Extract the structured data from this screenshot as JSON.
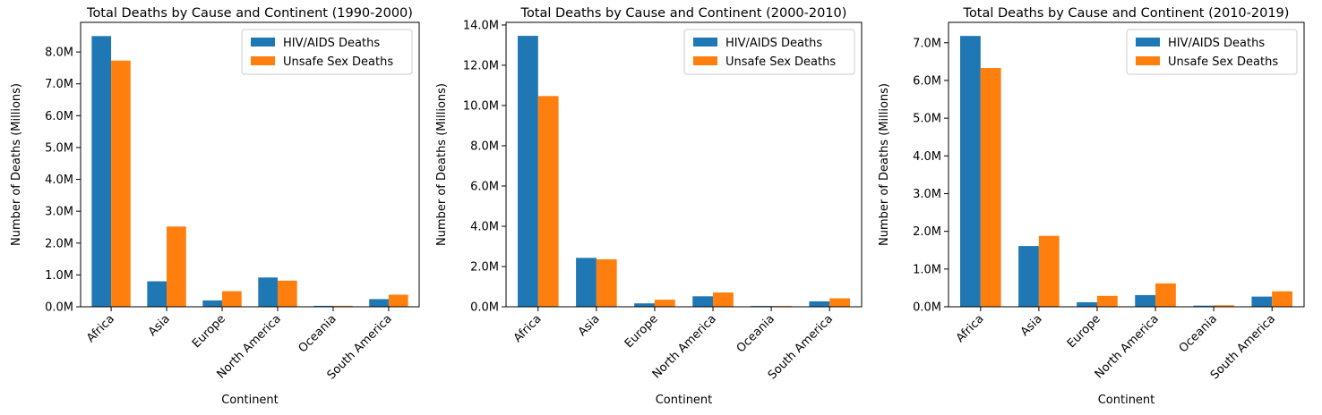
{
  "chart_data": [
    {
      "type": "bar",
      "title": "Total Deaths by Cause and Continent (1990-2000)",
      "xlabel": "Continent",
      "ylabel": "Number of Deaths (Millions)",
      "categories": [
        "Africa",
        "Asia",
        "Europe",
        "North America",
        "Oceania",
        "South America"
      ],
      "series": [
        {
          "name": "HIV/AIDS Deaths",
          "color": "#1f77b4",
          "values": [
            8.5,
            0.8,
            0.2,
            0.92,
            0.03,
            0.24
          ]
        },
        {
          "name": "Unsafe Sex Deaths",
          "color": "#ff7f0e",
          "values": [
            7.73,
            2.52,
            0.49,
            0.82,
            0.03,
            0.38
          ]
        }
      ],
      "yticks": [
        0,
        1,
        2,
        3,
        4,
        5,
        6,
        7,
        8
      ],
      "ytick_labels": [
        "0.0M",
        "1.0M",
        "2.0M",
        "3.0M",
        "4.0M",
        "5.0M",
        "6.0M",
        "7.0M",
        "8.0M"
      ],
      "ylim": [
        0,
        8.93
      ],
      "legend": "top-right",
      "grid": false
    },
    {
      "type": "bar",
      "title": "Total Deaths by Cause and Continent (2000-2010)",
      "xlabel": "Continent",
      "ylabel": "Number of Deaths (Millions)",
      "categories": [
        "Africa",
        "Asia",
        "Europe",
        "North America",
        "Oceania",
        "South America"
      ],
      "series": [
        {
          "name": "HIV/AIDS Deaths",
          "color": "#1f77b4",
          "values": [
            13.46,
            2.43,
            0.17,
            0.52,
            0.04,
            0.27
          ]
        },
        {
          "name": "Unsafe Sex Deaths",
          "color": "#ff7f0e",
          "values": [
            10.47,
            2.36,
            0.35,
            0.71,
            0.04,
            0.42
          ]
        }
      ],
      "yticks": [
        0,
        2,
        4,
        6,
        8,
        10,
        12,
        14
      ],
      "ytick_labels": [
        "0.0M",
        "2.0M",
        "4.0M",
        "6.0M",
        "8.0M",
        "10.0M",
        "12.0M",
        "14.0M"
      ],
      "ylim": [
        0,
        14.13
      ],
      "legend": "top-right",
      "grid": false
    },
    {
      "type": "bar",
      "title": "Total Deaths by Cause and Continent (2010-2019)",
      "xlabel": "Continent",
      "ylabel": "Number of Deaths (Millions)",
      "categories": [
        "Africa",
        "Asia",
        "Europe",
        "North America",
        "Oceania",
        "South America"
      ],
      "series": [
        {
          "name": "HIV/AIDS Deaths",
          "color": "#1f77b4",
          "values": [
            7.18,
            1.61,
            0.12,
            0.31,
            0.03,
            0.27
          ]
        },
        {
          "name": "Unsafe Sex Deaths",
          "color": "#ff7f0e",
          "values": [
            6.33,
            1.88,
            0.29,
            0.62,
            0.04,
            0.41
          ]
        }
      ],
      "yticks": [
        0,
        1,
        2,
        3,
        4,
        5,
        6,
        7
      ],
      "ytick_labels": [
        "0.0M",
        "1.0M",
        "2.0M",
        "3.0M",
        "4.0M",
        "5.0M",
        "6.0M",
        "7.0M"
      ],
      "ylim": [
        0,
        7.54
      ],
      "legend": "top-right",
      "grid": false
    }
  ]
}
